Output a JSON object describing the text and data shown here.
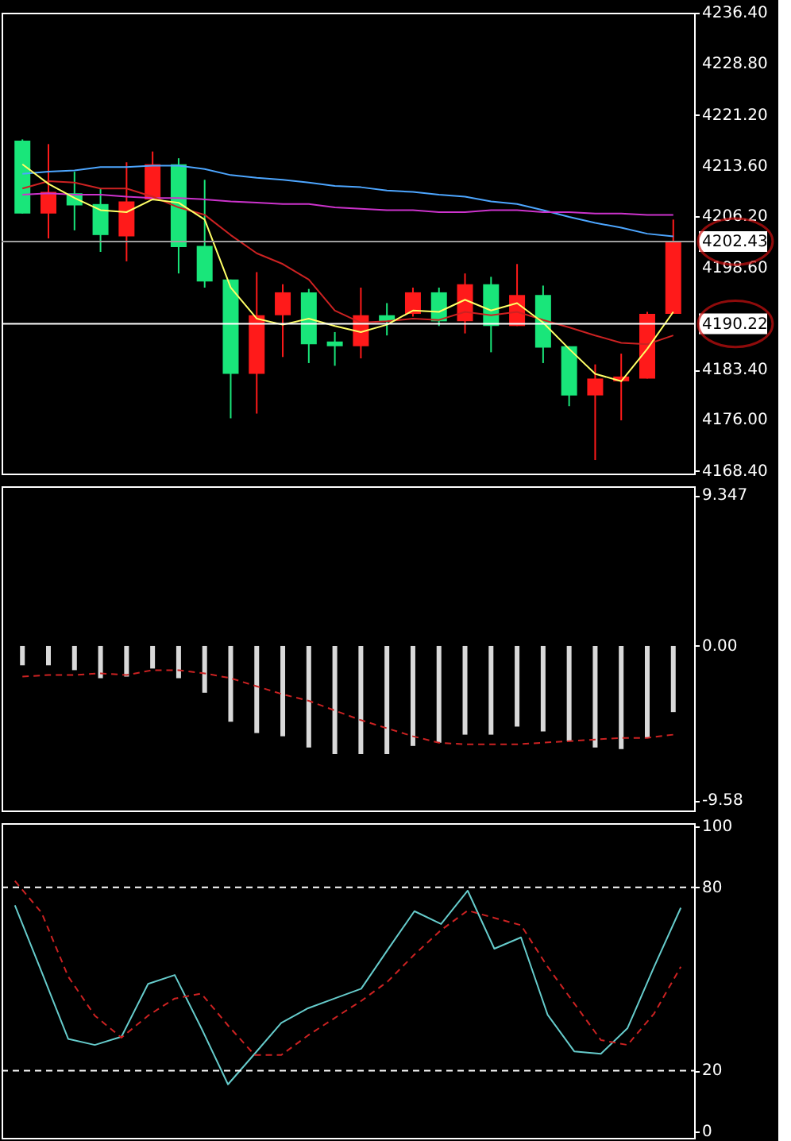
{
  "chart_data": [
    {
      "type": "candlestick",
      "categories": [
        null,
        null,
        null,
        null,
        null,
        null,
        null,
        null,
        null,
        null,
        null,
        null,
        null,
        null,
        null,
        null,
        null,
        null,
        null,
        null,
        null,
        null,
        null,
        null,
        null,
        null
      ],
      "ohlc": [
        [
          4217.4,
          4217.6,
          4206.6,
          4206.6
        ],
        [
          4206.6,
          4216.9,
          4202.9,
          4209.8
        ],
        [
          4209.6,
          4212.8,
          4204.1,
          4207.8
        ],
        [
          4208.0,
          4210.3,
          4200.9,
          4203.4
        ],
        [
          4203.2,
          4214.2,
          4199.5,
          4208.4
        ],
        [
          4208.7,
          4215.8,
          4208.7,
          4213.9
        ],
        [
          4213.9,
          4214.8,
          4197.7,
          4201.6
        ],
        [
          4201.8,
          4211.6,
          4195.6,
          4196.5
        ],
        [
          4196.8,
          4196.8,
          4176.2,
          4182.8
        ],
        [
          4182.8,
          4197.9,
          4176.9,
          4191.5
        ],
        [
          4191.5,
          4196.1,
          4185.3,
          4194.9
        ],
        [
          4194.9,
          4195.4,
          4184.4,
          4187.2
        ],
        [
          4187.6,
          4189.0,
          4184.0,
          4186.9
        ],
        [
          4186.9,
          4195.6,
          4185.1,
          4191.5
        ],
        [
          4191.5,
          4193.3,
          4188.5,
          4190.6
        ],
        [
          4191.7,
          4195.6,
          4191.3,
          4194.9
        ],
        [
          4194.9,
          4195.6,
          4189.9,
          4190.6
        ],
        [
          4190.6,
          4197.7,
          4188.8,
          4196.1
        ],
        [
          4196.1,
          4197.2,
          4186.0,
          4189.9
        ],
        [
          4189.9,
          4199.1,
          4189.9,
          4194.5
        ],
        [
          4194.5,
          4195.9,
          4184.4,
          4186.7
        ],
        [
          4186.9,
          4186.9,
          4178.0,
          4179.6
        ],
        [
          4179.6,
          4184.2,
          4170.0,
          4182.1
        ],
        [
          4181.7,
          4185.8,
          4175.9,
          4182.4
        ],
        [
          4182.1,
          4192.0,
          4182.1,
          4191.7
        ],
        [
          4191.7,
          4205.7,
          4191.7,
          4202.43
        ]
      ],
      "colors": [
        "#19e67a",
        "#ff1a1a",
        "#19e67a",
        "#19e67a",
        "#ff1a1a",
        "#ff1a1a",
        "#19e67a",
        "#19e67a",
        "#19e67a",
        "#ff1a1a",
        "#ff1a1a",
        "#19e67a",
        "#19e67a",
        "#ff1a1a",
        "#19e67a",
        "#ff1a1a",
        "#19e67a",
        "#ff1a1a",
        "#19e67a",
        "#ff1a1a",
        "#19e67a",
        "#19e67a",
        "#ff1a1a",
        "#ff1a1a",
        "#ff1a1a",
        "#ff1a1a"
      ],
      "series": [
        {
          "type": "line",
          "color": "#4da6ff",
          "values": [
            4212.5,
            4212.8,
            4213.0,
            4213.5,
            4213.5,
            4213.7,
            4213.7,
            4213.2,
            4212.3,
            4211.9,
            4211.6,
            4211.2,
            4210.7,
            4210.5,
            4210.0,
            4209.8,
            4209.4,
            4209.1,
            4208.4,
            4208.0,
            4207.1,
            4206.1,
            4205.2,
            4204.5,
            4203.6,
            4203.2
          ]
        },
        {
          "type": "line",
          "color": "#cc33cc",
          "values": [
            4209.4,
            4209.6,
            4209.4,
            4209.4,
            4209.1,
            4208.9,
            4208.9,
            4208.7,
            4208.4,
            4208.2,
            4208.0,
            4208.0,
            4207.5,
            4207.3,
            4207.1,
            4207.1,
            4206.8,
            4206.8,
            4207.1,
            4207.1,
            4206.8,
            4206.8,
            4206.6,
            4206.6,
            4206.4,
            4206.4
          ]
        },
        {
          "type": "line",
          "color": "#cc2222",
          "values": [
            4210.3,
            4211.4,
            4211.2,
            4210.3,
            4210.3,
            4209.1,
            4207.5,
            4206.4,
            4203.4,
            4200.7,
            4199.1,
            4196.8,
            4192.2,
            4190.4,
            4190.6,
            4191.0,
            4190.8,
            4192.0,
            4191.5,
            4192.0,
            4190.8,
            4189.7,
            4188.5,
            4187.4,
            4187.2,
            4188.5
          ]
        },
        {
          "type": "line",
          "color": "#ffff66",
          "values": [
            4213.9,
            4211.0,
            4208.9,
            4207.1,
            4206.8,
            4208.7,
            4208.2,
            4205.7,
            4195.6,
            4191.0,
            4190.1,
            4191.0,
            4189.9,
            4189.0,
            4190.1,
            4192.2,
            4192.0,
            4193.8,
            4192.2,
            4193.3,
            4190.4,
            4186.5,
            4182.8,
            4181.7,
            4186.5,
            4192.0
          ]
        }
      ],
      "ylim": [
        4168.0,
        4236.4
      ],
      "yticks": [
        {
          "value": 4168.4,
          "label": "4168.40"
        },
        {
          "value": 4176.0,
          "label": "4176.00"
        },
        {
          "value": 4183.4,
          "label": "4183.40"
        },
        {
          "value": 4198.6,
          "label": "4198.60"
        },
        {
          "value": 4206.2,
          "label": "4206.20"
        },
        {
          "value": 4213.6,
          "label": "4213.60"
        },
        {
          "value": 4221.2,
          "label": "4221.20"
        },
        {
          "value": 4228.8,
          "label": "4228.80"
        },
        {
          "value": 4236.4,
          "label": "4236.40"
        }
      ],
      "ref_lines": [
        {
          "axis": "y",
          "value": 4202.43,
          "label": "4202.43",
          "color": "#a0a0a0"
        },
        {
          "axis": "y",
          "value": 4190.22,
          "label": "4190.22",
          "color": "#ffffff"
        }
      ],
      "tick_labels": "y",
      "grid": false,
      "legend": false
    },
    {
      "type": "bar",
      "categories": [
        null,
        null,
        null,
        null,
        null,
        null,
        null,
        null,
        null,
        null,
        null,
        null,
        null,
        null,
        null,
        null,
        null,
        null,
        null,
        null,
        null,
        null,
        null,
        null,
        null,
        null
      ],
      "series": [
        {
          "type": "bar",
          "color": "#d9d9d9",
          "values": [
            -1.2,
            -1.2,
            -1.5,
            -2.0,
            -1.9,
            -1.4,
            -2.0,
            -2.9,
            -4.7,
            -5.4,
            -5.6,
            -6.3,
            -6.7,
            -6.7,
            -6.7,
            -6.2,
            -6.0,
            -5.5,
            -5.5,
            -5.0,
            -5.3,
            -5.9,
            -6.3,
            -6.4,
            -5.7,
            -4.1
          ]
        },
        {
          "type": "line",
          "color": "#cc2222",
          "line_style": "dashed",
          "values": [
            -1.9,
            -1.8,
            -1.8,
            -1.7,
            -1.8,
            -1.5,
            -1.5,
            -1.7,
            -2.0,
            -2.5,
            -3.0,
            -3.4,
            -4.0,
            -4.6,
            -5.1,
            -5.6,
            -6.0,
            -6.1,
            -6.1,
            -6.1,
            -6.0,
            -5.9,
            -5.8,
            -5.7,
            -5.7,
            -5.5
          ]
        }
      ],
      "ylim": [
        -10.2,
        9.9
      ],
      "yticks": [
        9.347,
        {
          "value": 0,
          "label": "0.00"
        },
        -9.58
      ],
      "tick_labels": "y",
      "grid": false,
      "legend": false
    },
    {
      "type": "line",
      "categories": [
        null,
        null,
        null,
        null,
        null,
        null,
        null,
        null,
        null,
        null,
        null,
        null,
        null,
        null,
        null,
        null,
        null,
        null,
        null,
        null,
        null,
        null,
        null,
        null,
        null,
        null
      ],
      "series": [
        {
          "type": "line",
          "color": "#66cccc",
          "line_style": "solid",
          "values": [
            74.1,
            52.4,
            30.4,
            28.4,
            31.1,
            48.4,
            51.3,
            33.9,
            15.5,
            25.5,
            35.6,
            40.4,
            43.6,
            46.8,
            59.6,
            72.2,
            68.0,
            78.9,
            59.9,
            63.6,
            38.3,
            26.3,
            25.5,
            33.9,
            54.0,
            73.3
          ]
        },
        {
          "type": "line",
          "color": "#cc2222",
          "line_style": "dashed",
          "values": [
            82.1,
            71.7,
            50.8,
            38.0,
            30.8,
            38.0,
            43.6,
            45.2,
            34.8,
            25.1,
            25.1,
            31.5,
            37.2,
            42.8,
            49.2,
            58.0,
            66.0,
            72.4,
            70.0,
            67.6,
            54.0,
            42.0,
            30.0,
            28.4,
            38.7,
            54.0
          ]
        }
      ],
      "ylim": [
        -2,
        101
      ],
      "yticks": [
        0,
        20,
        80,
        100
      ],
      "ref_lines": [
        {
          "axis": "y",
          "value": 80,
          "color": "#ffffff",
          "line_style": "dashed"
        },
        {
          "axis": "y",
          "value": 20,
          "color": "#ffffff",
          "line_style": "dashed"
        }
      ],
      "tick_labels": "y",
      "grid": false,
      "legend": false
    }
  ]
}
